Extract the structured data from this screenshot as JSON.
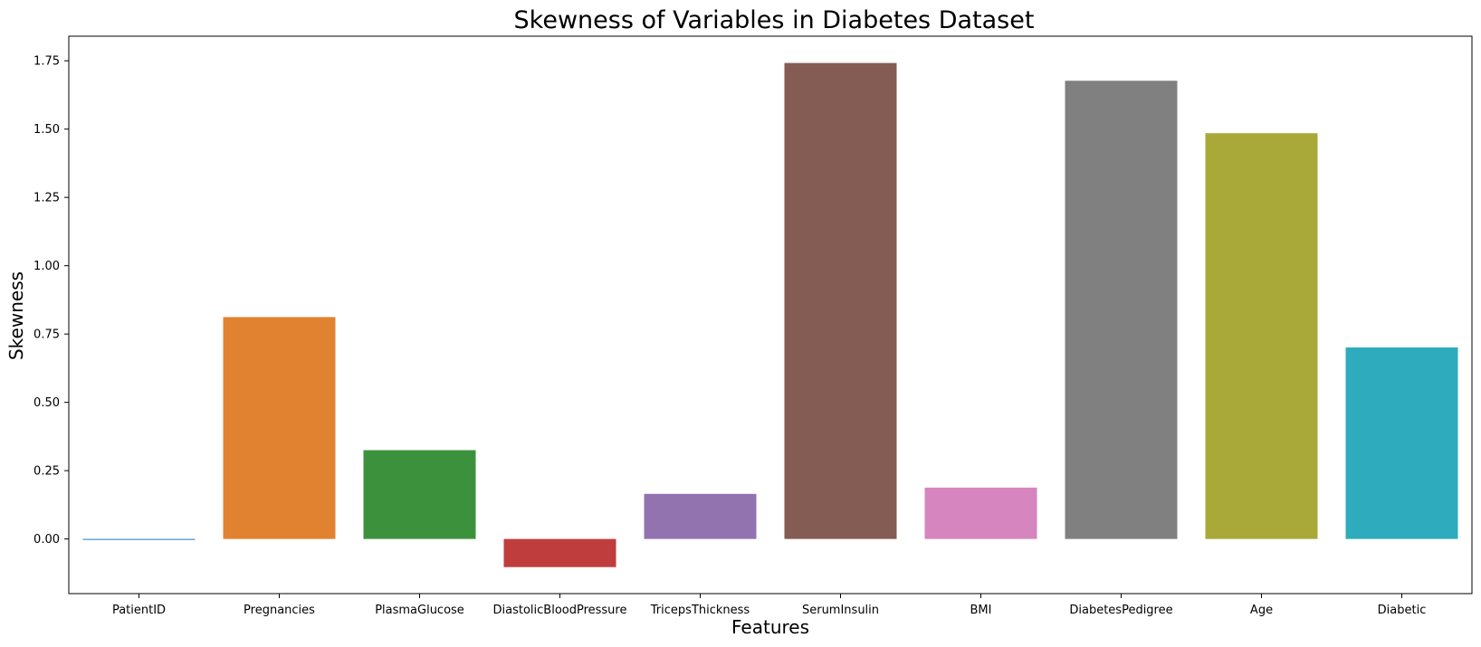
{
  "chart_data": {
    "type": "bar",
    "title": "Skewness of Variables in Diabetes Dataset",
    "xlabel": "Features",
    "ylabel": "Skewness",
    "categories": [
      "PatientID",
      "Pregnancies",
      "PlasmaGlucose",
      "DiastolicBloodPressure",
      "TricepsThickness",
      "SerumInsulin",
      "BMI",
      "DiabetesPedigree",
      "Age",
      "Diabetic"
    ],
    "values": [
      -0.001,
      0.812,
      0.325,
      -0.103,
      0.165,
      1.742,
      0.188,
      1.677,
      1.485,
      0.701
    ],
    "colors": [
      "#1f77b4",
      "#e08230",
      "#3c923c",
      "#c03d3e",
      "#9372b0",
      "#845c54",
      "#d685bf",
      "#808080",
      "#a9a93a",
      "#2eabbc"
    ],
    "ylim": [
      -0.2,
      1.84
    ],
    "yticks": [
      0.0,
      0.25,
      0.5,
      0.75,
      1.0,
      1.25,
      1.5,
      1.75
    ],
    "ytick_labels": [
      "0.00",
      "0.25",
      "0.50",
      "0.75",
      "1.00",
      "1.25",
      "1.50",
      "1.75"
    ],
    "grid": false,
    "legend": "none"
  }
}
